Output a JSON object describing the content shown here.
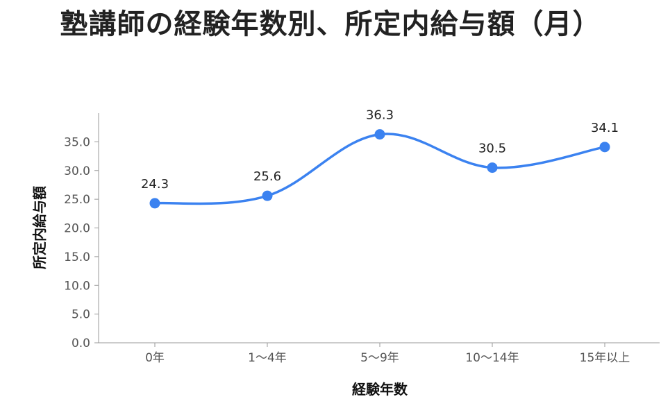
{
  "chart_data": {
    "type": "line",
    "title": "塾講師の経験年数別、所定内給与額（月）",
    "xlabel": "経験年数",
    "ylabel": "所定内給与額",
    "categories": [
      "0年",
      "1〜4年",
      "5〜9年",
      "10〜14年",
      "15年以上"
    ],
    "series": [
      {
        "values": [
          24.3,
          25.6,
          36.3,
          30.5,
          34.1
        ]
      }
    ],
    "data_labels": [
      "24.3",
      "25.6",
      "36.3",
      "30.5",
      "34.1"
    ],
    "yticks": [
      "0.0",
      "5.0",
      "10.0",
      "15.0",
      "20.0",
      "25.0",
      "30.0",
      "35.0"
    ],
    "ylim": [
      0,
      40
    ],
    "grid": false,
    "smooth": true,
    "color": "#3b82f0"
  }
}
